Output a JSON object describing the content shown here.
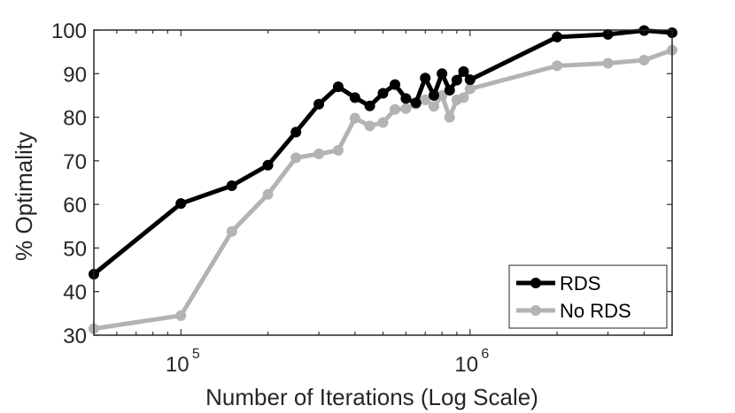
{
  "chart_data": {
    "type": "line",
    "title": "",
    "xlabel": "Number of Iterations (Log Scale)",
    "ylabel": "% Optimality",
    "xscale": "log",
    "xlim": [
      50000,
      5000000
    ],
    "ylim": [
      30,
      100
    ],
    "yticks": [
      30,
      40,
      50,
      60,
      70,
      80,
      90,
      100
    ],
    "xticks": [
      {
        "value": 100000,
        "base": "10",
        "exp": "5"
      },
      {
        "value": 1000000,
        "base": "10",
        "exp": "6"
      }
    ],
    "grid": false,
    "legend_position": "bottom-right",
    "series": [
      {
        "name": "RDS",
        "color": "#000000",
        "x": [
          50000,
          100000,
          150000,
          200000,
          250000,
          300000,
          350000,
          400000,
          450000,
          500000,
          550000,
          600000,
          650000,
          700000,
          750000,
          800000,
          850000,
          900000,
          950000,
          1000000,
          2000000,
          3000000,
          4000000,
          5000000
        ],
        "y": [
          44,
          60.2,
          64.3,
          69,
          76.6,
          83,
          87,
          84.5,
          82.6,
          85.5,
          87.5,
          84.3,
          83.3,
          89,
          85,
          90,
          86.2,
          88.5,
          90.5,
          88.6,
          98.4,
          99,
          99.9,
          99.4
        ]
      },
      {
        "name": "No RDS",
        "color": "#b3b3b3",
        "x": [
          50000,
          100000,
          150000,
          200000,
          250000,
          300000,
          350000,
          400000,
          450000,
          500000,
          550000,
          600000,
          650000,
          700000,
          750000,
          800000,
          850000,
          900000,
          950000,
          1000000,
          2000000,
          3000000,
          4000000,
          5000000
        ],
        "y": [
          31.5,
          34.5,
          53.8,
          62.3,
          70.7,
          71.6,
          72.4,
          79.8,
          78,
          78.8,
          81.8,
          82,
          83,
          84,
          82.5,
          85,
          80,
          84,
          84.5,
          86.5,
          91.8,
          92.4,
          93.1,
          95.4
        ]
      }
    ]
  }
}
